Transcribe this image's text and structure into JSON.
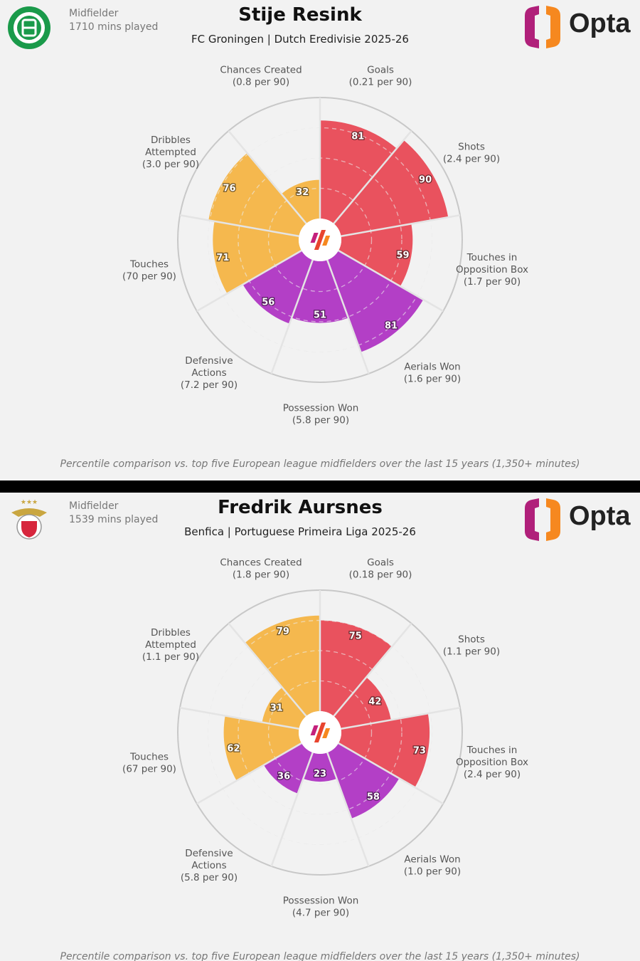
{
  "colors": {
    "attacking": "#e9525e",
    "defending": "#b33fc6",
    "possession": "#f5b84e",
    "background": "#f2f2f2"
  },
  "caption": "Percentile comparison vs. top five European league midfielders over the last 15 years (1,350+ minutes)",
  "players": [
    {
      "position": "Midfielder",
      "minutes": "1710 mins played",
      "name": "Stije Resink",
      "subtitle": "FC Groningen | Dutch Eredivisie 2025-26",
      "crest": "fc-groningen-crest",
      "brand": "Opta"
    },
    {
      "position": "Midfielder",
      "minutes": "1539 mins played",
      "name": "Fredrik Aursnes",
      "subtitle": "Benfica | Portuguese Primeira Liga 2025-26",
      "crest": "benfica-crest",
      "brand": "Opta"
    }
  ],
  "chart_data": [
    {
      "type": "pie",
      "subtype": "pizza",
      "scale": [
        0,
        100
      ],
      "grid_rings": [
        25,
        50,
        75,
        100
      ],
      "categories": [
        {
          "label": [
            "Goals"
          ],
          "per90": "(0.21 per 90)",
          "value": 81,
          "group": "attacking"
        },
        {
          "label": [
            "Shots"
          ],
          "per90": "(2.4 per 90)",
          "value": 90,
          "group": "attacking"
        },
        {
          "label": [
            "Touches in",
            "Opposition Box"
          ],
          "per90": "(1.7 per 90)",
          "value": 59,
          "group": "attacking"
        },
        {
          "label": [
            "Aerials Won"
          ],
          "per90": "(1.6 per 90)",
          "value": 81,
          "group": "defending"
        },
        {
          "label": [
            "Possession Won"
          ],
          "per90": "(5.8 per 90)",
          "value": 51,
          "group": "defending"
        },
        {
          "label": [
            "Defensive",
            "Actions"
          ],
          "per90": "(7.2 per 90)",
          "value": 56,
          "group": "defending"
        },
        {
          "label": [
            "Touches"
          ],
          "per90": "(70 per 90)",
          "value": 71,
          "group": "possession"
        },
        {
          "label": [
            "Dribbles",
            "Attempted"
          ],
          "per90": "(3.0 per 90)",
          "value": 76,
          "group": "possession"
        },
        {
          "label": [
            "Chances Created"
          ],
          "per90": "(0.8 per 90)",
          "value": 32,
          "group": "possession"
        }
      ]
    },
    {
      "type": "pie",
      "subtype": "pizza",
      "scale": [
        0,
        100
      ],
      "grid_rings": [
        25,
        50,
        75,
        100
      ],
      "categories": [
        {
          "label": [
            "Goals"
          ],
          "per90": "(0.18 per 90)",
          "value": 75,
          "group": "attacking"
        },
        {
          "label": [
            "Shots"
          ],
          "per90": "(1.1 per 90)",
          "value": 42,
          "group": "attacking"
        },
        {
          "label": [
            "Touches in",
            "Opposition Box"
          ],
          "per90": "(2.4 per 90)",
          "value": 73,
          "group": "attacking"
        },
        {
          "label": [
            "Aerials Won"
          ],
          "per90": "(1.0 per 90)",
          "value": 58,
          "group": "defending"
        },
        {
          "label": [
            "Possession Won"
          ],
          "per90": "(4.7 per 90)",
          "value": 23,
          "group": "defending"
        },
        {
          "label": [
            "Defensive",
            "Actions"
          ],
          "per90": "(5.8 per 90)",
          "value": 36,
          "group": "defending"
        },
        {
          "label": [
            "Touches"
          ],
          "per90": "(67 per 90)",
          "value": 62,
          "group": "possession"
        },
        {
          "label": [
            "Dribbles",
            "Attempted"
          ],
          "per90": "(1.1 per 90)",
          "value": 31,
          "group": "possession"
        },
        {
          "label": [
            "Chances Created"
          ],
          "per90": "(1.8 per 90)",
          "value": 79,
          "group": "possession"
        }
      ]
    }
  ]
}
